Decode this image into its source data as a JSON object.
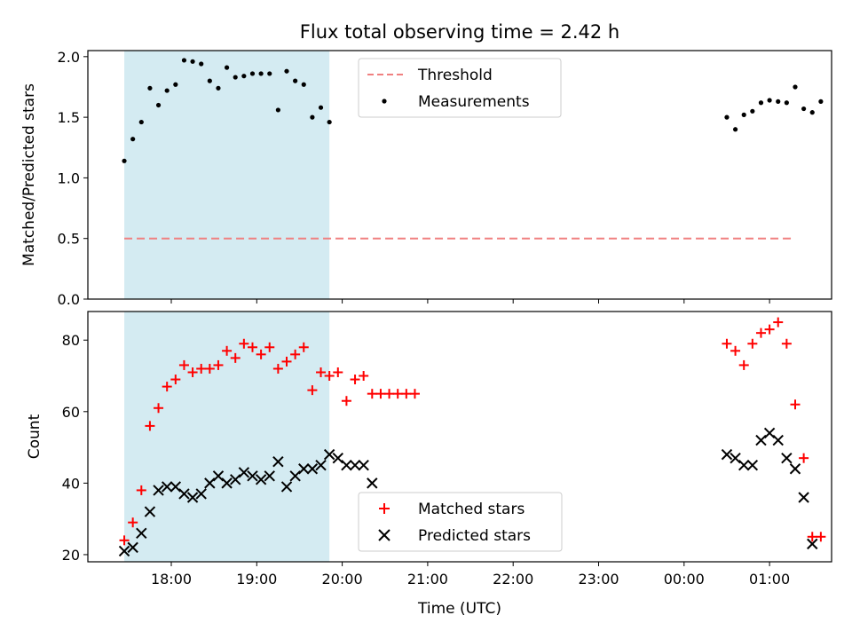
{
  "figure": {
    "title": "Flux total observing time = 2.42 h",
    "xlabel": "Time (UTC)",
    "xticks": [
      "18:00",
      "19:00",
      "20:00",
      "21:00",
      "22:00",
      "23:00",
      "00:00",
      "01:00"
    ],
    "shaded_span": {
      "start": "17:27",
      "end": "19:51",
      "color": "#add8e6"
    }
  },
  "chart_data": [
    {
      "type": "scatter",
      "ylabel": "Matched/Predicted stars",
      "ylim": [
        0.0,
        2.05
      ],
      "yticks": [
        "0.0",
        "0.5",
        "1.0",
        "1.5",
        "2.0"
      ],
      "legend": "top-center",
      "threshold": {
        "name": "Threshold",
        "value": 0.5,
        "x_start": "17:27",
        "x_end": "01:18",
        "color": "#f08080",
        "style": "dashed"
      },
      "series": [
        {
          "name": "Measurements",
          "marker": "dot",
          "color": "#000000",
          "x": [
            "17:27",
            "17:33",
            "17:39",
            "17:45",
            "17:51",
            "17:57",
            "18:03",
            "18:09",
            "18:15",
            "18:21",
            "18:27",
            "18:33",
            "18:39",
            "18:45",
            "18:51",
            "18:57",
            "19:03",
            "19:09",
            "19:15",
            "19:21",
            "19:27",
            "19:33",
            "19:39",
            "19:45",
            "19:51",
            "00:30",
            "00:36",
            "00:42",
            "00:48",
            "00:54",
            "01:00",
            "01:06",
            "01:12",
            "01:18",
            "01:24",
            "01:30",
            "01:36"
          ],
          "y": [
            1.14,
            1.32,
            1.46,
            1.74,
            1.6,
            1.72,
            1.77,
            1.97,
            1.96,
            1.94,
            1.8,
            1.74,
            1.91,
            1.83,
            1.84,
            1.86,
            1.86,
            1.86,
            1.56,
            1.88,
            1.8,
            1.77,
            1.5,
            1.58,
            1.46,
            1.5,
            1.4,
            1.52,
            1.55,
            1.62,
            1.64,
            1.63,
            1.62,
            1.75,
            1.57,
            1.54,
            1.63
          ]
        }
      ]
    },
    {
      "type": "scatter",
      "ylabel": "Count",
      "ylim": [
        18,
        88
      ],
      "yticks": [
        "20",
        "40",
        "60",
        "80"
      ],
      "legend": "bottom-center",
      "series": [
        {
          "name": "Matched stars",
          "marker": "plus",
          "color": "#ff0000",
          "x": [
            "17:27",
            "17:33",
            "17:39",
            "17:45",
            "17:51",
            "17:57",
            "18:03",
            "18:09",
            "18:15",
            "18:21",
            "18:27",
            "18:33",
            "18:39",
            "18:45",
            "18:51",
            "18:57",
            "19:03",
            "19:09",
            "19:15",
            "19:21",
            "19:27",
            "19:33",
            "19:39",
            "19:45",
            "19:51",
            "19:57",
            "20:03",
            "20:09",
            "20:15",
            "20:21",
            "20:27",
            "20:33",
            "20:39",
            "20:45",
            "20:51",
            "00:30",
            "00:36",
            "00:42",
            "00:48",
            "00:54",
            "01:00",
            "01:06",
            "01:12",
            "01:18",
            "01:24",
            "01:30",
            "01:36"
          ],
          "y": [
            24,
            29,
            38,
            56,
            61,
            67,
            69,
            73,
            71,
            72,
            72,
            73,
            77,
            75,
            79,
            78,
            76,
            78,
            72,
            74,
            76,
            78,
            66,
            71,
            70,
            71,
            63,
            69,
            70,
            65,
            65,
            65,
            65,
            65,
            65,
            79,
            77,
            73,
            79,
            82,
            83,
            85,
            79,
            62,
            47,
            25,
            25
          ]
        },
        {
          "name": "Predicted stars",
          "marker": "x",
          "color": "#000000",
          "x": [
            "17:27",
            "17:33",
            "17:39",
            "17:45",
            "17:51",
            "17:57",
            "18:03",
            "18:09",
            "18:15",
            "18:21",
            "18:27",
            "18:33",
            "18:39",
            "18:45",
            "18:51",
            "18:57",
            "19:03",
            "19:09",
            "19:15",
            "19:21",
            "19:27",
            "19:33",
            "19:39",
            "19:45",
            "19:51",
            "19:57",
            "20:03",
            "20:09",
            "20:15",
            "20:21",
            "00:30",
            "00:36",
            "00:42",
            "00:48",
            "00:54",
            "01:00",
            "01:06",
            "01:12",
            "01:18",
            "01:24",
            "01:30"
          ],
          "y": [
            21,
            22,
            26,
            32,
            38,
            39,
            39,
            37,
            36,
            37,
            40,
            42,
            40,
            41,
            43,
            42,
            41,
            42,
            46,
            39,
            42,
            44,
            44,
            45,
            48,
            47,
            45,
            45,
            45,
            40,
            48,
            47,
            45,
            45,
            52,
            54,
            52,
            47,
            44,
            36,
            23
          ]
        }
      ]
    }
  ]
}
